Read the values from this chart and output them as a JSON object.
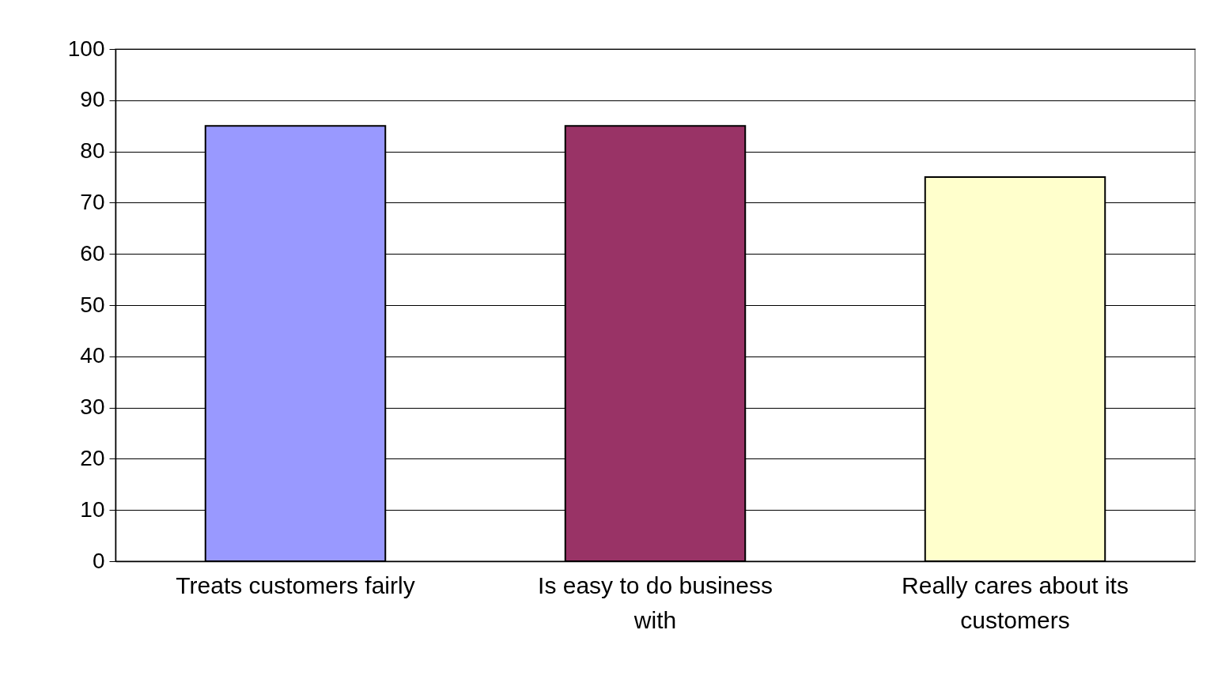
{
  "chart_data": {
    "type": "bar",
    "categories": [
      "Treats customers fairly",
      "Is easy to do business with",
      "Really cares about its customers"
    ],
    "values": [
      85,
      85,
      75
    ],
    "colors": [
      "#9999ff",
      "#993366",
      "#ffffcc"
    ],
    "ylim": [
      0,
      100
    ],
    "yticks": [
      0,
      10,
      20,
      30,
      40,
      50,
      60,
      70,
      80,
      90,
      100
    ],
    "grid": "y"
  }
}
